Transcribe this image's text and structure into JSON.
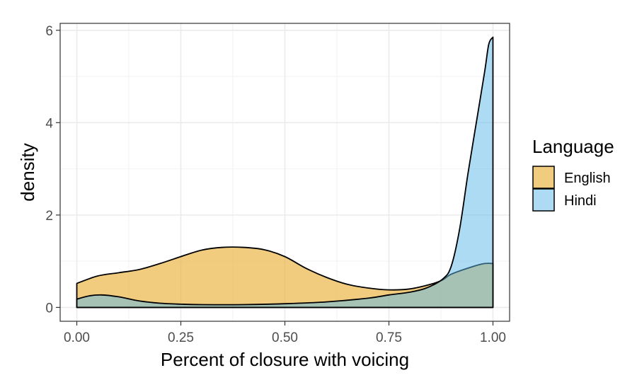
{
  "chart_data": {
    "type": "area",
    "title": "",
    "xlabel": "Percent of closure with voicing",
    "ylabel": "density",
    "xlim": [
      0,
      1
    ],
    "ylim": [
      0,
      6
    ],
    "x_ticks": [
      0,
      0.25,
      0.5,
      0.75,
      1
    ],
    "x_tick_labels": [
      "0.00",
      "0.25",
      "0.50",
      "0.75",
      "1.00"
    ],
    "y_ticks": [
      0,
      2,
      4,
      6
    ],
    "y_tick_labels": [
      "0",
      "2",
      "4",
      "6"
    ],
    "grid": true,
    "legend": {
      "title": "Language",
      "position": "right"
    },
    "series": [
      {
        "name": "English",
        "color": "#e9b13b",
        "opacity": 0.65,
        "x": [
          0,
          0.05,
          0.1,
          0.15,
          0.2,
          0.25,
          0.3,
          0.35,
          0.4,
          0.45,
          0.5,
          0.55,
          0.6,
          0.65,
          0.7,
          0.75,
          0.8,
          0.85,
          0.88,
          0.9,
          0.95,
          0.98,
          1.0
        ],
        "values": [
          0.52,
          0.68,
          0.75,
          0.82,
          0.95,
          1.1,
          1.24,
          1.3,
          1.3,
          1.25,
          1.1,
          0.85,
          0.65,
          0.5,
          0.42,
          0.38,
          0.4,
          0.5,
          0.6,
          0.72,
          0.88,
          0.95,
          0.95
        ]
      },
      {
        "name": "Hindi",
        "color": "#5bb8ea",
        "opacity": 0.5,
        "x": [
          0,
          0.03,
          0.06,
          0.1,
          0.15,
          0.2,
          0.25,
          0.3,
          0.4,
          0.5,
          0.6,
          0.7,
          0.75,
          0.8,
          0.84,
          0.88,
          0.9,
          0.92,
          0.94,
          0.96,
          0.98,
          0.99,
          1.0
        ],
        "values": [
          0.18,
          0.25,
          0.27,
          0.23,
          0.14,
          0.09,
          0.07,
          0.06,
          0.06,
          0.08,
          0.12,
          0.2,
          0.27,
          0.33,
          0.42,
          0.62,
          0.9,
          1.7,
          2.9,
          4.0,
          5.1,
          5.7,
          5.85
        ]
      }
    ]
  }
}
